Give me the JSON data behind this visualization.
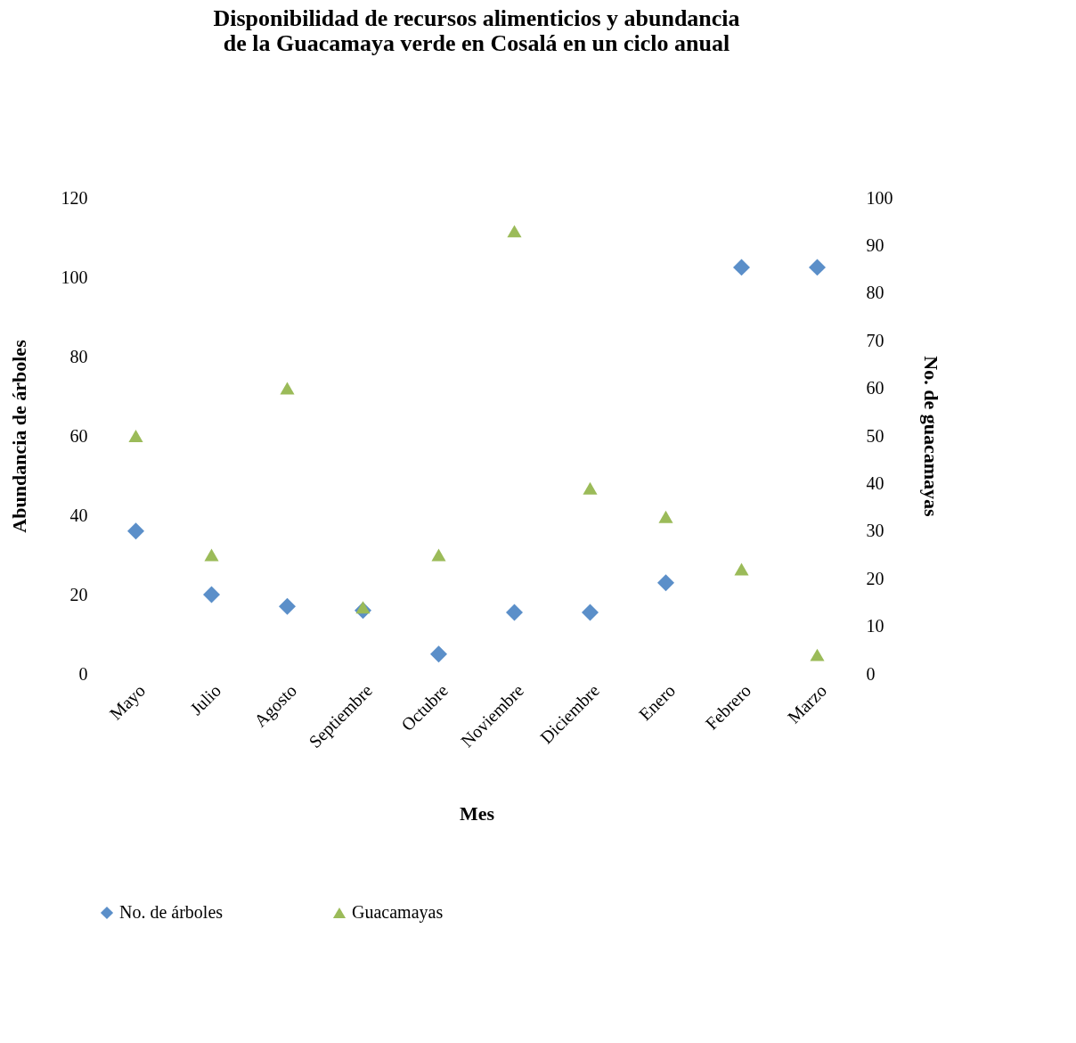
{
  "chart_data": {
    "type": "scatter",
    "title": "Disponibilidad de recursos alimenticios y abundancia de la Guacamaya verde en Cosalá en un ciclo anual",
    "xlabel": "Mes",
    "ylabel": "Abundancia de árboles",
    "y2label": "No. de guacamayas",
    "categories": [
      "Mayo",
      "Julio",
      "Agosto",
      "Septiembre",
      "Octubre",
      "Noviembre",
      "Diciembre",
      "Enero",
      "Febrero",
      "Marzo"
    ],
    "ylim": [
      0,
      120
    ],
    "yticks": [
      0,
      20,
      40,
      60,
      80,
      100,
      120
    ],
    "y2lim": [
      0,
      100
    ],
    "y2ticks": [
      0,
      10,
      20,
      30,
      40,
      50,
      60,
      70,
      80,
      90,
      100
    ],
    "grid": false,
    "legend": "bottom",
    "series": [
      {
        "name": "No. de árboles",
        "color": "#5b8fc9",
        "marker": "diamond",
        "values": [
          36,
          20,
          17,
          16,
          5,
          15.5,
          15.5,
          23,
          102.5,
          102.5
        ]
      },
      {
        "name": "Guacamayas",
        "color": "#9bbb59",
        "marker": "triangle",
        "axis": "y2",
        "values": [
          50,
          25,
          60,
          14,
          25,
          93,
          39,
          33,
          22,
          4
        ]
      }
    ]
  }
}
